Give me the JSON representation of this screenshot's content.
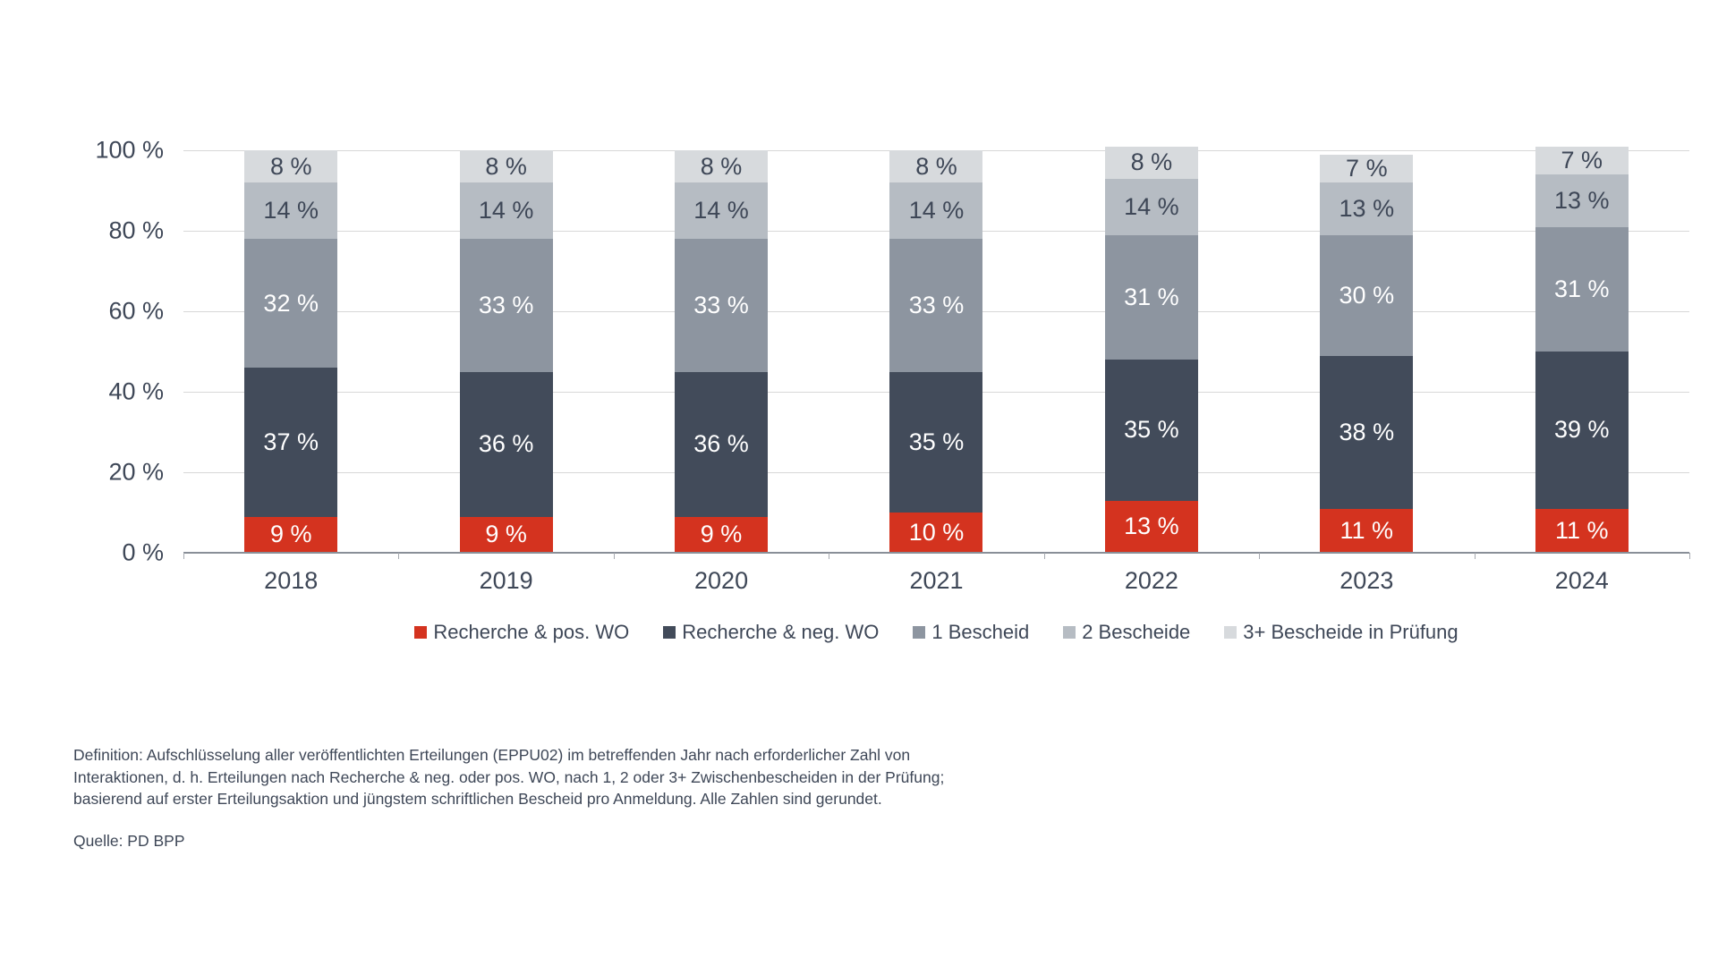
{
  "chart_data": {
    "type": "bar",
    "stacked": true,
    "title": "",
    "categories": [
      "2018",
      "2019",
      "2020",
      "2021",
      "2022",
      "2023",
      "2024"
    ],
    "series": [
      {
        "name": "Recherche & pos. WO",
        "color": "#D4331F",
        "label_color": "#FFFFFF",
        "values": [
          9,
          9,
          9,
          10,
          13,
          11,
          11
        ]
      },
      {
        "name": "Recherche & neg. WO",
        "color": "#424B5A",
        "label_color": "#FFFFFF",
        "values": [
          37,
          36,
          36,
          35,
          35,
          38,
          39
        ]
      },
      {
        "name": "1 Bescheid",
        "color": "#8D95A0",
        "label_color": "#FFFFFF",
        "values": [
          32,
          33,
          33,
          33,
          31,
          30,
          31
        ]
      },
      {
        "name": "2 Bescheide",
        "color": "#B6BCC3",
        "label_color": "#3E4757",
        "values": [
          14,
          14,
          14,
          14,
          14,
          13,
          13
        ]
      },
      {
        "name": "3+ Bescheide in Prüfung",
        "color": "#D7DADD",
        "label_color": "#3E4757",
        "values": [
          8,
          8,
          8,
          8,
          8,
          7,
          7
        ]
      }
    ],
    "value_suffix": " %",
    "xlabel": "",
    "ylabel": "",
    "y_axis": {
      "min": 0,
      "max": 100,
      "step": 20,
      "tick_labels": [
        "0 %",
        "20 %",
        "40 %",
        "60 %",
        "80 %",
        "100 %"
      ]
    },
    "grid": true,
    "legend_position": "bottom"
  },
  "colors": {
    "gridline": "#D8D8D8",
    "axis_line": "#898F98",
    "text": "#3E4757",
    "background": "#FFFFFF"
  },
  "footer": {
    "definition_lines": [
      "Definition: Aufschlüsselung aller veröffentlichten Erteilungen (EPPU02) im betreffenden Jahr nach erforderlicher Zahl von",
      "Interaktionen, d. h. Erteilungen nach Recherche & neg. oder pos. WO, nach 1, 2 oder 3+ Zwischenbescheiden in der Prüfung;",
      "basierend auf erster Erteilungsaktion und jüngstem schriftlichen Bescheid pro Anmeldung. Alle Zahlen sind gerundet."
    ],
    "source": "Quelle: PD BPP"
  }
}
